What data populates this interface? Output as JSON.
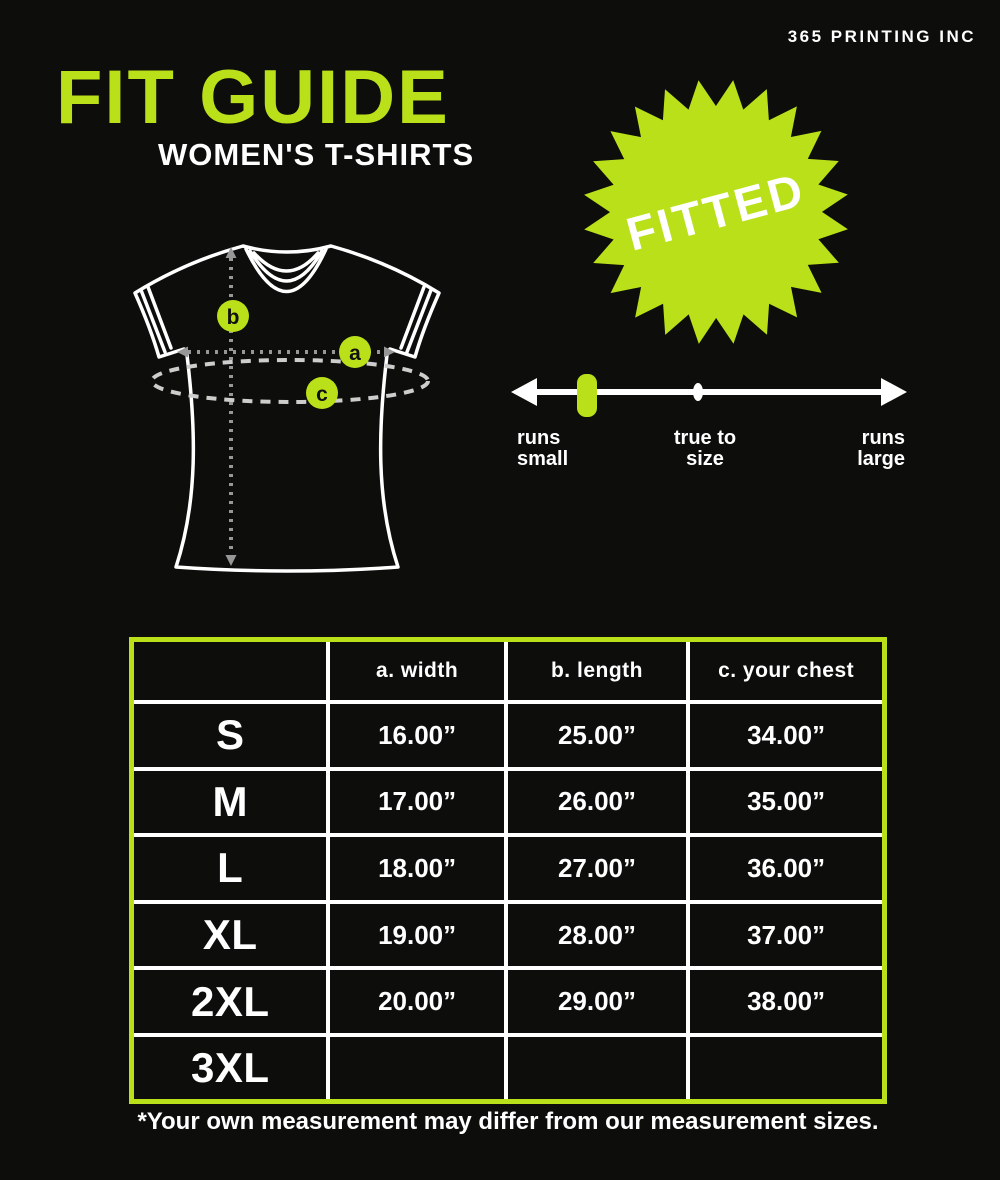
{
  "brand": "365 PRINTING INC",
  "title": "FIT GUIDE",
  "subtitle": "WOMEN'S T-SHIRTS",
  "badge": {
    "label": "FITTED"
  },
  "diagram": {
    "markers": [
      "b",
      "a",
      "c"
    ]
  },
  "fit_scale": {
    "labels": [
      "runs small",
      "true to size",
      "runs large"
    ]
  },
  "table": {
    "headers": [
      "",
      "a. width",
      "b. length",
      "c. your chest"
    ],
    "rows": [
      {
        "size": "S",
        "width": "16.00”",
        "length": "25.00”",
        "chest": "34.00”"
      },
      {
        "size": "M",
        "width": "17.00”",
        "length": "26.00”",
        "chest": "35.00”"
      },
      {
        "size": "L",
        "width": "18.00”",
        "length": "27.00”",
        "chest": "36.00”"
      },
      {
        "size": "XL",
        "width": "19.00”",
        "length": "28.00”",
        "chest": "37.00”"
      },
      {
        "size": "2XL",
        "width": "20.00”",
        "length": "29.00”",
        "chest": "38.00”"
      },
      {
        "size": "3XL",
        "width": "",
        "length": "",
        "chest": ""
      }
    ]
  },
  "footnote": "*Your own measurement may differ from our measurement sizes.",
  "colors": {
    "accent": "#b9e019",
    "background": "#0d0d0b",
    "text": "#ffffff"
  }
}
